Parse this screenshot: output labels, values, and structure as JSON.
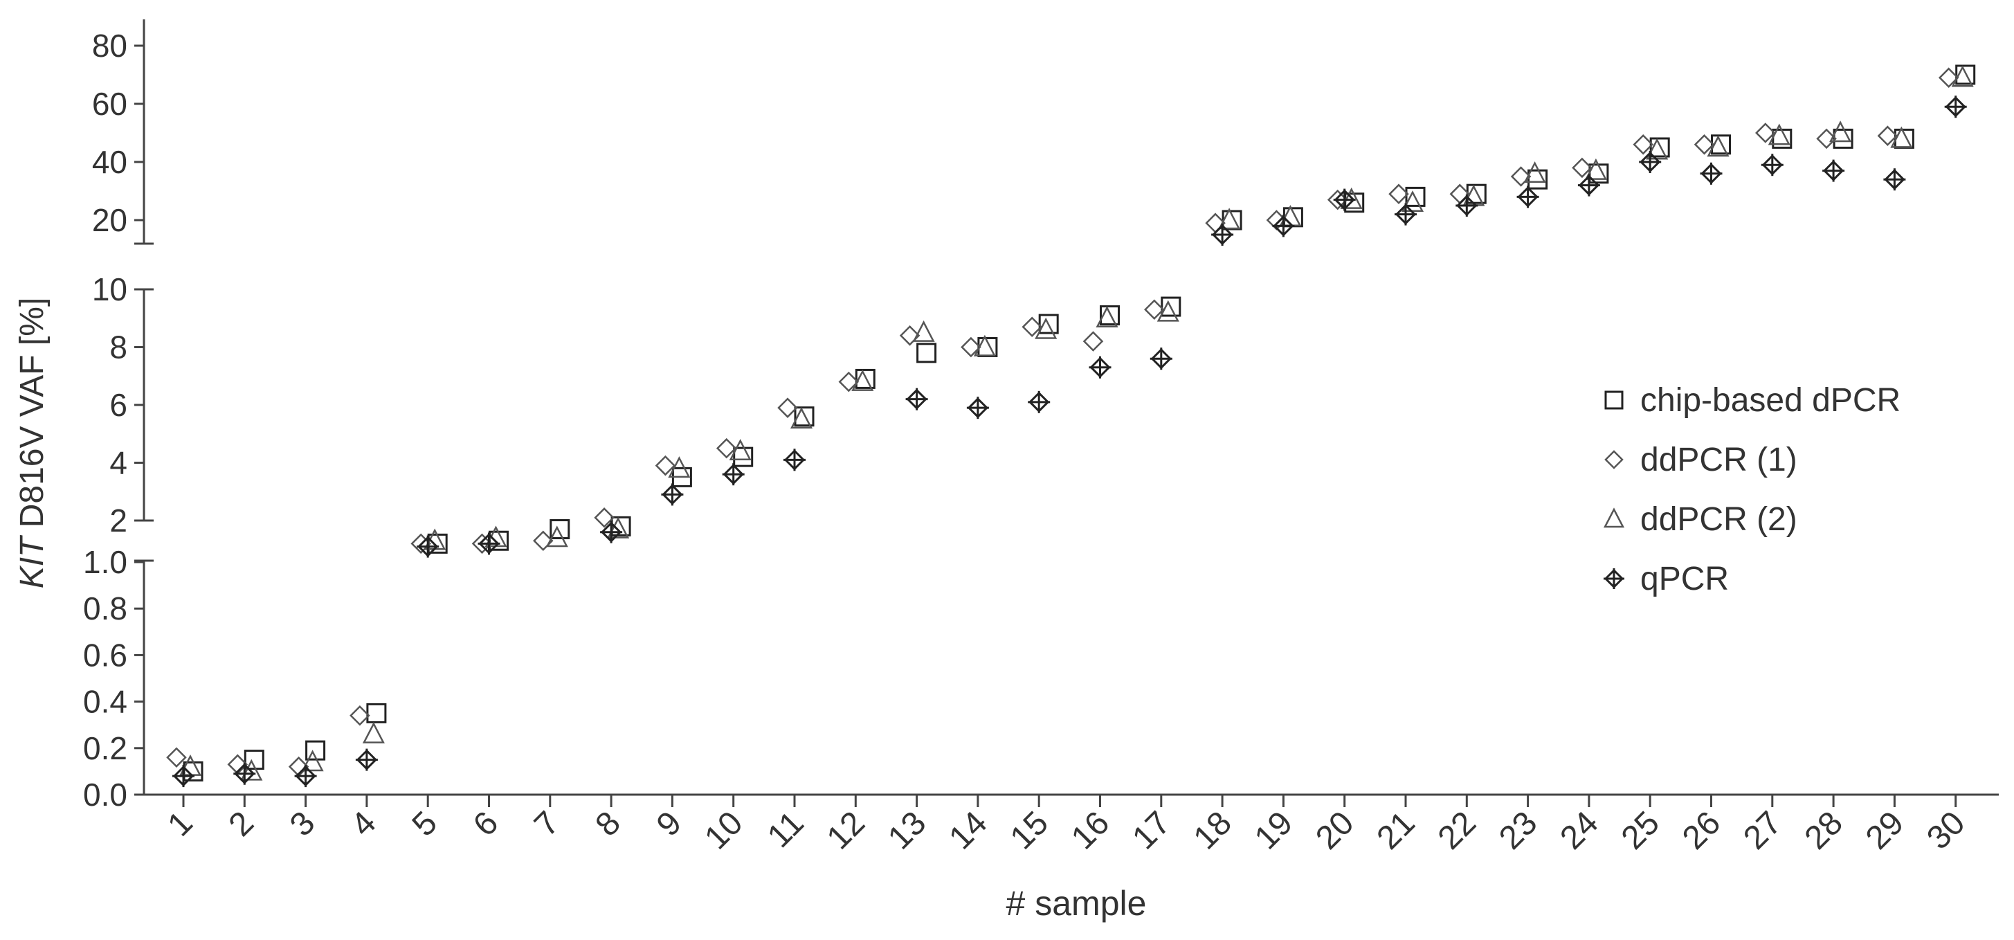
{
  "chart_data": {
    "type": "scatter",
    "xlabel": "# sample",
    "ylabel_italic": "KIT",
    "ylabel_rest": " D816V VAF [%]",
    "categories": [
      "1",
      "2",
      "3",
      "4",
      "5",
      "6",
      "7",
      "8",
      "9",
      "10",
      "11",
      "12",
      "13",
      "14",
      "15",
      "16",
      "17",
      "18",
      "19",
      "20",
      "21",
      "22",
      "23",
      "24",
      "25",
      "26",
      "27",
      "28",
      "29",
      "30"
    ],
    "y_segments": [
      {
        "range": [
          0,
          1.0
        ],
        "ticks": [
          0.0,
          0.2,
          0.4,
          0.6,
          0.8,
          1.0
        ],
        "tick_labels": [
          "0.0",
          "0.2",
          "0.4",
          "0.6",
          "0.8",
          "1.0"
        ]
      },
      {
        "range": [
          1,
          10
        ],
        "ticks": [
          2,
          4,
          6,
          8,
          10
        ],
        "tick_labels": [
          "2",
          "4",
          "6",
          "8",
          "10"
        ]
      },
      {
        "range": [
          10,
          90
        ],
        "ticks": [
          20,
          40,
          60,
          80
        ],
        "tick_labels": [
          "20",
          "40",
          "60",
          "80"
        ]
      }
    ],
    "legend_position": "right",
    "series": [
      {
        "name": "chip-based dPCR",
        "marker": "square",
        "values": [
          0.1,
          0.15,
          0.19,
          0.35,
          1.2,
          1.3,
          1.7,
          1.8,
          3.5,
          4.2,
          5.6,
          6.9,
          7.8,
          8.0,
          8.8,
          9.1,
          9.4,
          20,
          21,
          26,
          28,
          29,
          34,
          36,
          45,
          46,
          48,
          48,
          48,
          70
        ]
      },
      {
        "name": "ddPCR (1)",
        "marker": "diamond",
        "values": [
          0.16,
          0.13,
          0.12,
          0.34,
          1.2,
          1.2,
          1.3,
          2.1,
          3.9,
          4.5,
          5.9,
          6.8,
          8.4,
          8.0,
          8.7,
          8.2,
          9.3,
          19,
          20,
          27,
          29,
          29,
          35,
          38,
          46,
          46,
          50,
          48,
          49,
          69
        ]
      },
      {
        "name": "ddPCR (2)",
        "marker": "triangle",
        "values": [
          0.12,
          0.1,
          0.14,
          0.26,
          1.3,
          1.4,
          1.4,
          1.7,
          3.8,
          4.4,
          5.5,
          6.8,
          8.5,
          8.0,
          8.6,
          9.0,
          9.2,
          20,
          21,
          27,
          26,
          28,
          36,
          37,
          44,
          45,
          49,
          50,
          48,
          69
        ]
      },
      {
        "name": "qPCR",
        "marker": "crossed-diamond",
        "values": [
          0.08,
          0.09,
          0.08,
          0.15,
          1.1,
          1.2,
          null,
          1.6,
          2.9,
          3.6,
          4.1,
          null,
          6.2,
          5.9,
          6.1,
          7.3,
          7.6,
          15,
          18,
          27,
          22,
          25,
          28,
          32,
          40,
          36,
          39,
          37,
          34,
          59
        ]
      }
    ]
  }
}
